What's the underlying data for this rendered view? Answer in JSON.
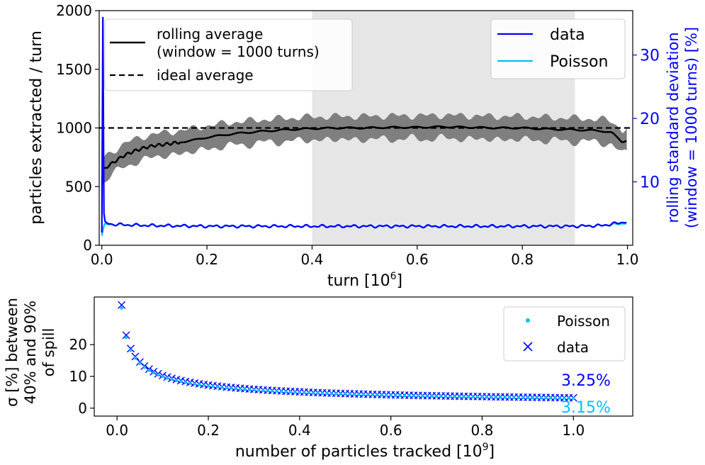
{
  "chart_data": [
    {
      "type": "line",
      "xlabel_main": "turn [10",
      "xlabel_sup": "6",
      "xlabel_end": "]",
      "ylabel": "particles extracted / turn",
      "ylabel2_line1": "rolling standard deviation",
      "ylabel2_line2": "(window = 1000 turns) [%]",
      "xlim": [
        -0.005,
        1.01
      ],
      "ylim": [
        0,
        2000
      ],
      "y2lim": [
        0,
        37
      ],
      "x_ticks": [
        0.0,
        0.2,
        0.4,
        0.6,
        0.8,
        1.0
      ],
      "x_tick_labels": [
        "0.0",
        "0.2",
        "0.4",
        "0.6",
        "0.8",
        "1.0"
      ],
      "y_ticks": [
        0,
        500,
        1000,
        1500,
        2000
      ],
      "y_tick_labels": [
        "0",
        "500",
        "1000",
        "1500",
        "2000"
      ],
      "y2_ticks": [
        10,
        20,
        30
      ],
      "y2_tick_labels": [
        "10",
        "20",
        "30"
      ],
      "shaded_region": [
        0.4,
        0.9
      ],
      "ideal_average": 1000,
      "colors": {
        "rolling": "#000000",
        "ideal": "#000000",
        "raw": "#7f7f7f",
        "data": "#0000ff",
        "poisson": "#00bfff",
        "shade": "#e6e6e6",
        "right_axis": "#0000ff"
      },
      "legend_left": {
        "placement": "top-left",
        "entries": [
          {
            "label_line1": "rolling average",
            "label_line2": "(window = 1000 turns)"
          },
          {
            "label_line1": "ideal average"
          }
        ]
      },
      "legend_right": {
        "placement": "top-right",
        "entries": [
          {
            "label": "data"
          },
          {
            "label": "Poisson"
          }
        ]
      },
      "series": [
        {
          "name": "rolling average",
          "axis": "left",
          "x": [
            0.0,
            0.005,
            0.01,
            0.02,
            0.03,
            0.04,
            0.05,
            0.06,
            0.08,
            0.1,
            0.12,
            0.15,
            0.18,
            0.2,
            0.25,
            0.3,
            0.35,
            0.4,
            0.45,
            0.5,
            0.55,
            0.6,
            0.65,
            0.7,
            0.75,
            0.8,
            0.85,
            0.9,
            0.95,
            0.97,
            0.99,
            1.0
          ],
          "y": [
            620,
            650,
            670,
            700,
            730,
            760,
            780,
            800,
            830,
            850,
            860,
            880,
            900,
            920,
            950,
            970,
            985,
            995,
            1000,
            1000,
            1005,
            1005,
            1010,
            1005,
            1000,
            1000,
            990,
            985,
            975,
            960,
            880,
            900
          ]
        },
        {
          "name": "data",
          "axis": "right",
          "x": [
            0.0,
            0.002,
            0.003,
            0.004,
            0.006,
            0.01,
            0.02,
            0.05,
            0.1,
            0.2,
            0.3,
            0.4,
            0.5,
            0.6,
            0.7,
            0.8,
            0.9,
            0.95,
            0.99,
            1.0
          ],
          "y": [
            2,
            36,
            20,
            5,
            3.8,
            3.5,
            3.3,
            3.2,
            3.1,
            3.0,
            3.0,
            3.0,
            3.0,
            3.0,
            3.0,
            3.0,
            3.0,
            3.1,
            3.6,
            3.8
          ]
        },
        {
          "name": "Poisson",
          "axis": "right",
          "x": [
            0.0,
            0.005,
            0.01,
            0.05,
            0.1,
            0.2,
            0.3,
            0.4,
            0.5,
            0.6,
            0.7,
            0.8,
            0.9,
            0.95,
            0.99,
            1.0
          ],
          "y": [
            1.5,
            3.5,
            3.3,
            3.2,
            3.1,
            3.0,
            3.0,
            3.0,
            3.0,
            3.0,
            3.0,
            3.0,
            3.0,
            3.1,
            3.4,
            3.6
          ]
        }
      ]
    },
    {
      "type": "scatter",
      "xlabel_main": "number of particles tracked [10",
      "xlabel_sup": "9",
      "xlabel_end": "]",
      "ylabel_line1": "σ [%] between",
      "ylabel_line2": "40% and 90%",
      "ylabel_line3": "of spill",
      "xlim": [
        -0.05,
        1.13
      ],
      "ylim": [
        -2.5,
        35
      ],
      "x_ticks": [
        0.0,
        0.2,
        0.4,
        0.6,
        0.8,
        1.0
      ],
      "x_tick_labels": [
        "0.0",
        "0.2",
        "0.4",
        "0.6",
        "0.8",
        "1.0"
      ],
      "y_ticks": [
        0,
        10,
        20
      ],
      "y_tick_labels": [
        "0",
        "10",
        "20"
      ],
      "legend": {
        "placement": "top-right",
        "entries": [
          {
            "label": "Poisson",
            "marker": "dot"
          },
          {
            "label": "data",
            "marker": "x"
          }
        ]
      },
      "annotations": [
        {
          "text": "3.25%",
          "color": "#0000ff"
        },
        {
          "text": "3.15%",
          "color": "#00bfff"
        }
      ],
      "series": [
        {
          "name": "data",
          "marker": "x",
          "color": "#0000ff",
          "formula_note": "y ≈ 3.25 / sqrt(x)",
          "x_start": 0.01,
          "x_end": 1.0,
          "x_step": 0.01,
          "y_at_1": 3.25
        },
        {
          "name": "Poisson",
          "marker": "dot",
          "color": "#00bfff",
          "x_start": 0.01,
          "x_end": 1.0,
          "x_step": 0.01,
          "y_at_1": 3.15
        }
      ]
    }
  ]
}
